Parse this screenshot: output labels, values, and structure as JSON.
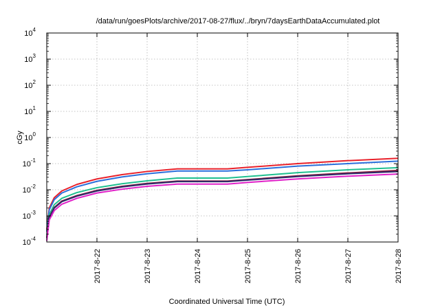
{
  "chart_data": {
    "type": "line",
    "title": "/data/run/goesPlots/archive/2017-08-27/flux/../bryn/7daysEarthDataAccumulated.plot",
    "xlabel": "Coordinated Universal Time (UTC)",
    "ylabel": "cGy",
    "yscale": "log",
    "ylim": [
      0.0001,
      10000
    ],
    "xlim": [
      0,
      7
    ],
    "grid": true,
    "yticks": [
      {
        "value": 0.0001,
        "base": "10",
        "exp": "-4"
      },
      {
        "value": 0.001,
        "base": "10",
        "exp": "-3"
      },
      {
        "value": 0.01,
        "base": "10",
        "exp": "-2"
      },
      {
        "value": 0.1,
        "base": "10",
        "exp": "-1"
      },
      {
        "value": 1,
        "base": "10",
        "exp": "0"
      },
      {
        "value": 10,
        "base": "10",
        "exp": "1"
      },
      {
        "value": 100,
        "base": "10",
        "exp": "2"
      },
      {
        "value": 1000,
        "base": "10",
        "exp": "3"
      },
      {
        "value": 10000,
        "base": "10",
        "exp": "4"
      }
    ],
    "xticks": [
      {
        "value": 1,
        "label": "2017-8-22"
      },
      {
        "value": 2,
        "label": "2017-8-23"
      },
      {
        "value": 3,
        "label": "2017-8-24"
      },
      {
        "value": 4,
        "label": "2017-8-25"
      },
      {
        "value": 5,
        "label": "2017-8-26"
      },
      {
        "value": 6,
        "label": "2017-8-27"
      },
      {
        "value": 7,
        "label": "2017-8-28"
      }
    ],
    "series": [
      {
        "color": "#e8202a",
        "x": [
          0.0,
          0.05,
          0.15,
          0.3,
          0.6,
          1.0,
          1.5,
          2.0,
          2.6,
          3.0,
          3.6,
          4.0,
          5.0,
          6.0,
          7.0
        ],
        "y": [
          0.0003,
          0.002,
          0.005,
          0.009,
          0.016,
          0.026,
          0.038,
          0.05,
          0.063,
          0.063,
          0.063,
          0.072,
          0.1,
          0.13,
          0.16
        ]
      },
      {
        "color": "#2a6fdb",
        "x": [
          0.0,
          0.05,
          0.15,
          0.3,
          0.6,
          1.0,
          1.5,
          2.0,
          2.6,
          3.0,
          3.6,
          4.0,
          5.0,
          6.0,
          7.0
        ],
        "y": [
          0.00025,
          0.0017,
          0.0042,
          0.0075,
          0.013,
          0.021,
          0.031,
          0.041,
          0.052,
          0.052,
          0.052,
          0.058,
          0.08,
          0.1,
          0.125
        ]
      },
      {
        "color": "#1fbf8f",
        "x": [
          0.0,
          0.05,
          0.15,
          0.3,
          0.6,
          1.0,
          1.5,
          2.0,
          2.6,
          3.0,
          3.6,
          4.0,
          5.0,
          6.0,
          7.0
        ],
        "y": [
          0.00018,
          0.0011,
          0.0027,
          0.0047,
          0.0078,
          0.012,
          0.017,
          0.022,
          0.028,
          0.028,
          0.028,
          0.032,
          0.045,
          0.058,
          0.07
        ]
      },
      {
        "color": "#8b1a3a",
        "x": [
          0.0,
          0.05,
          0.15,
          0.3,
          0.6,
          1.0,
          1.5,
          2.0,
          2.6,
          3.0,
          3.6,
          4.0,
          5.0,
          6.0,
          7.0
        ],
        "y": [
          0.00015,
          0.0009,
          0.0021,
          0.0037,
          0.006,
          0.0095,
          0.0135,
          0.0175,
          0.0215,
          0.0215,
          0.0215,
          0.0245,
          0.034,
          0.044,
          0.055
        ]
      },
      {
        "color": "#2b2b6a",
        "x": [
          0.0,
          0.05,
          0.15,
          0.3,
          0.6,
          1.0,
          1.5,
          2.0,
          2.6,
          3.0,
          3.6,
          4.0,
          5.0,
          6.0,
          7.0
        ],
        "y": [
          0.00014,
          0.00085,
          0.002,
          0.0035,
          0.0057,
          0.009,
          0.0128,
          0.0166,
          0.0205,
          0.0205,
          0.0205,
          0.0233,
          0.032,
          0.041,
          0.05
        ]
      },
      {
        "color": "#e020c8",
        "x": [
          0.0,
          0.05,
          0.15,
          0.3,
          0.6,
          1.0,
          1.5,
          2.0,
          2.6,
          3.0,
          3.6,
          4.0,
          5.0,
          6.0,
          7.0
        ],
        "y": [
          0.00011,
          0.0007,
          0.0016,
          0.0028,
          0.0047,
          0.0075,
          0.0105,
          0.0135,
          0.0165,
          0.0165,
          0.0165,
          0.019,
          0.026,
          0.033,
          0.04
        ]
      }
    ]
  }
}
